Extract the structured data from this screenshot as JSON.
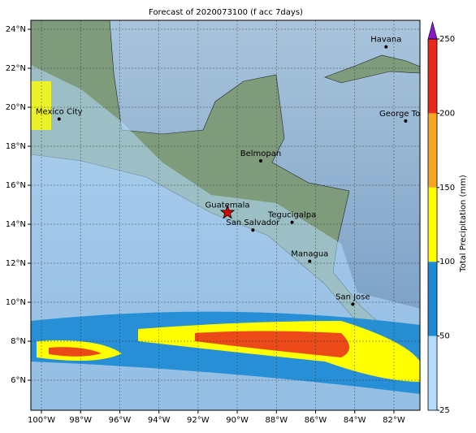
{
  "map": {
    "title": "Forecast of 2020073100 (f acc 7days)",
    "lon_lim": [
      -100.54,
      -80.67
    ],
    "lat_lim": [
      4.46,
      24.46
    ],
    "lon_ticks": [
      {
        "value": -100,
        "label": "100°W"
      },
      {
        "value": -98,
        "label": "98°W"
      },
      {
        "value": -96,
        "label": "96°W"
      },
      {
        "value": -94,
        "label": "94°W"
      },
      {
        "value": -92,
        "label": "92°W"
      },
      {
        "value": -90,
        "label": "90°W"
      },
      {
        "value": -88,
        "label": "88°W"
      },
      {
        "value": -86,
        "label": "86°W"
      },
      {
        "value": -84,
        "label": "84°W"
      },
      {
        "value": -82,
        "label": "82°W"
      }
    ],
    "lat_ticks": [
      {
        "value": 6,
        "label": "6°N"
      },
      {
        "value": 8,
        "label": "8°N"
      },
      {
        "value": 10,
        "label": "10°N"
      },
      {
        "value": 12,
        "label": "12°N"
      },
      {
        "value": 14,
        "label": "14°N"
      },
      {
        "value": 16,
        "label": "16°N"
      },
      {
        "value": 18,
        "label": "18°N"
      },
      {
        "value": 20,
        "label": "20°N"
      },
      {
        "value": 22,
        "label": "22°N"
      },
      {
        "value": 24,
        "label": "24°N"
      }
    ],
    "cities": [
      {
        "name": "Mexico City",
        "lon": -99.1,
        "lat": 19.4
      },
      {
        "name": "Belmopan",
        "lon": -88.8,
        "lat": 17.25
      },
      {
        "name": "Guatemala",
        "lon": -90.5,
        "lat": 14.6
      },
      {
        "name": "San Salvador",
        "lon": -89.2,
        "lat": 13.7
      },
      {
        "name": "Tegucigalpa",
        "lon": -87.2,
        "lat": 14.1
      },
      {
        "name": "Managua",
        "lon": -86.3,
        "lat": 12.1
      },
      {
        "name": "San Jose",
        "lon": -84.1,
        "lat": 9.9
      },
      {
        "name": "George Town",
        "lon": -81.4,
        "lat": 19.3
      },
      {
        "name": "Havana",
        "lon": -82.4,
        "lat": 23.1
      }
    ],
    "colorbar": {
      "label": "Total Precipitation (mm)",
      "levels": [
        25,
        50,
        100,
        150,
        200,
        250
      ],
      "colors": [
        "#b3dcff",
        "#1a8ad4",
        "#ffff00",
        "#f5a623",
        "#e8291c"
      ],
      "extend_color": "#8a1ac8"
    }
  }
}
